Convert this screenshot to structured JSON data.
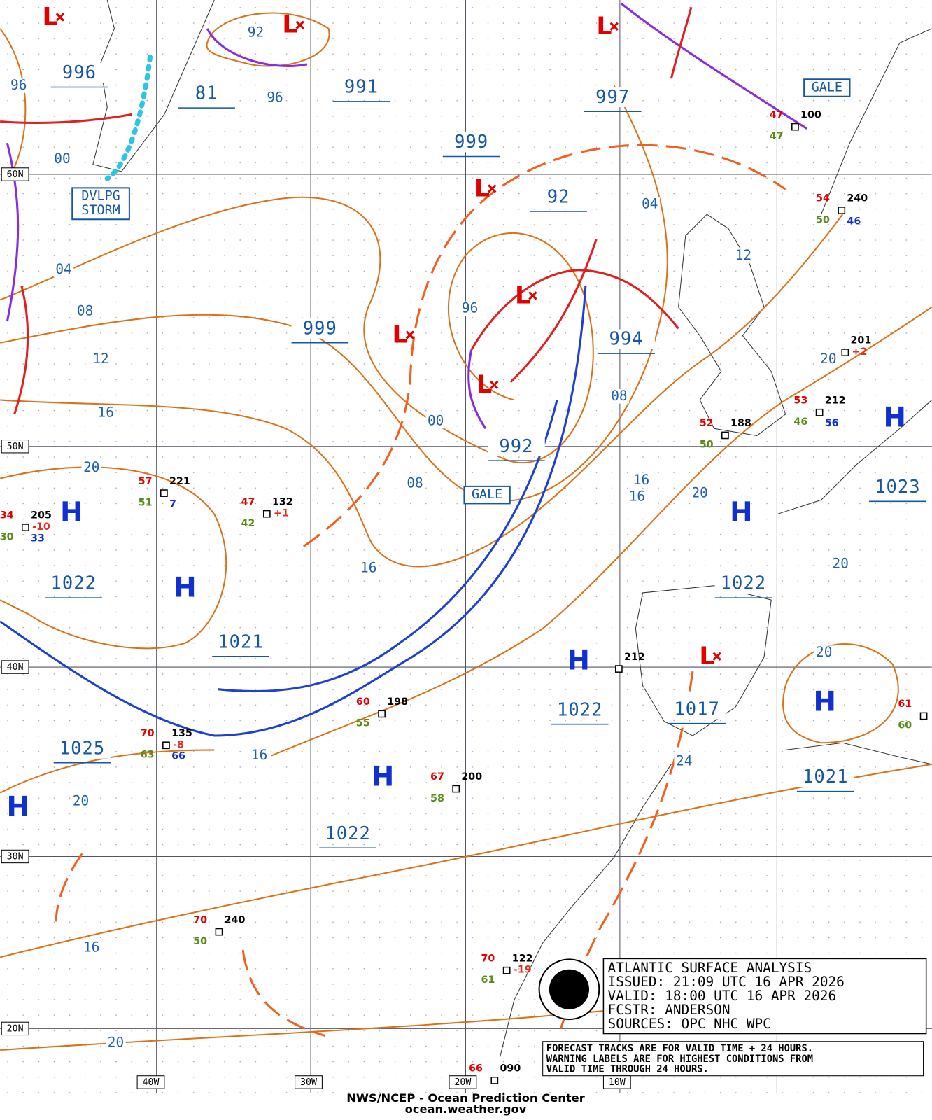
{
  "info": [
    "ATLANTIC SURFACE ANALYSIS",
    "ISSUED:  21:09 UTC 16 APR 2026",
    "VALID:   18:00 UTC 16 APR 2026",
    "FCSTR:   ANDERSON",
    "SOURCES:  OPC NHC WPC"
  ],
  "note": [
    "FORECAST TRACKS ARE FOR VALID TIME + 24 HOURS.",
    "WARNING LABELS ARE FOR HIGHEST CONDITIONS FROM",
    "VALID TIME THROUGH 24 HOURS."
  ],
  "footer": [
    "NWS/NCEP - Ocean Prediction Center",
    "ocean.weather.gov"
  ],
  "lat_labels": [
    "60N",
    "50N",
    "40N",
    "30N",
    "20N"
  ],
  "lon_labels": [
    "40W",
    "30W",
    "20W",
    "10W"
  ],
  "centers": [
    "996",
    "81",
    "991",
    "999",
    "997",
    "92",
    "999",
    "994",
    "992",
    "1023",
    "1022",
    "1021",
    "1022",
    "1022",
    "1017",
    "1021",
    "1025",
    "1022"
  ],
  "isobar_labels": [
    "96",
    "92",
    "96",
    "00",
    "04",
    "08",
    "12",
    "16",
    "20",
    "96",
    "00",
    "08",
    "16",
    "04",
    "12",
    "08",
    "16",
    "16",
    "20",
    "20",
    "20",
    "20",
    "16",
    "24",
    "20",
    "16",
    "20"
  ],
  "highs": [
    "H",
    "H",
    "H",
    "H",
    "H",
    "H",
    "H",
    "H"
  ],
  "lows": [
    "L",
    "L",
    "L",
    "L",
    "L",
    "L",
    "L",
    "L"
  ],
  "warnings": [
    "DVLPG STORM",
    "GALE",
    "GALE"
  ],
  "stations": [
    {
      "temp": "57",
      "dew": "51",
      "pressure": "221",
      "wave": "7"
    },
    {
      "temp": "47",
      "dew": "42",
      "pressure": "132",
      "tendency": "+1"
    },
    {
      "temp": "34",
      "dew": "30",
      "pressure": "205",
      "wave": "33",
      "tendency": "-10"
    },
    {
      "temp": "60",
      "dew": "55",
      "pressure": "198"
    },
    {
      "temp": "70",
      "dew": "63",
      "pressure": "135",
      "wave": "66",
      "tendency": "-8"
    },
    {
      "temp": "67",
      "dew": "58",
      "pressure": "200"
    },
    {
      "temp": "70",
      "dew": "50",
      "pressure": "240"
    },
    {
      "temp": "70",
      "dew": "61",
      "pressure": "122",
      "tendency": "-19"
    },
    {
      "temp": "66",
      "pressure": "090"
    },
    {
      "temp": "47",
      "dew": "47",
      "pressure": "100"
    },
    {
      "temp": "54",
      "dew": "50",
      "pressure": "240",
      "wave": "46"
    },
    {
      "pressure": "201",
      "tendency": "+2"
    },
    {
      "temp": "53",
      "dew": "46",
      "pressure": "212",
      "wave": "56"
    },
    {
      "temp": "52",
      "dew": "50",
      "pressure": "188"
    },
    {
      "pressure": "212"
    },
    {
      "temp": "61",
      "dew": "60"
    }
  ]
}
